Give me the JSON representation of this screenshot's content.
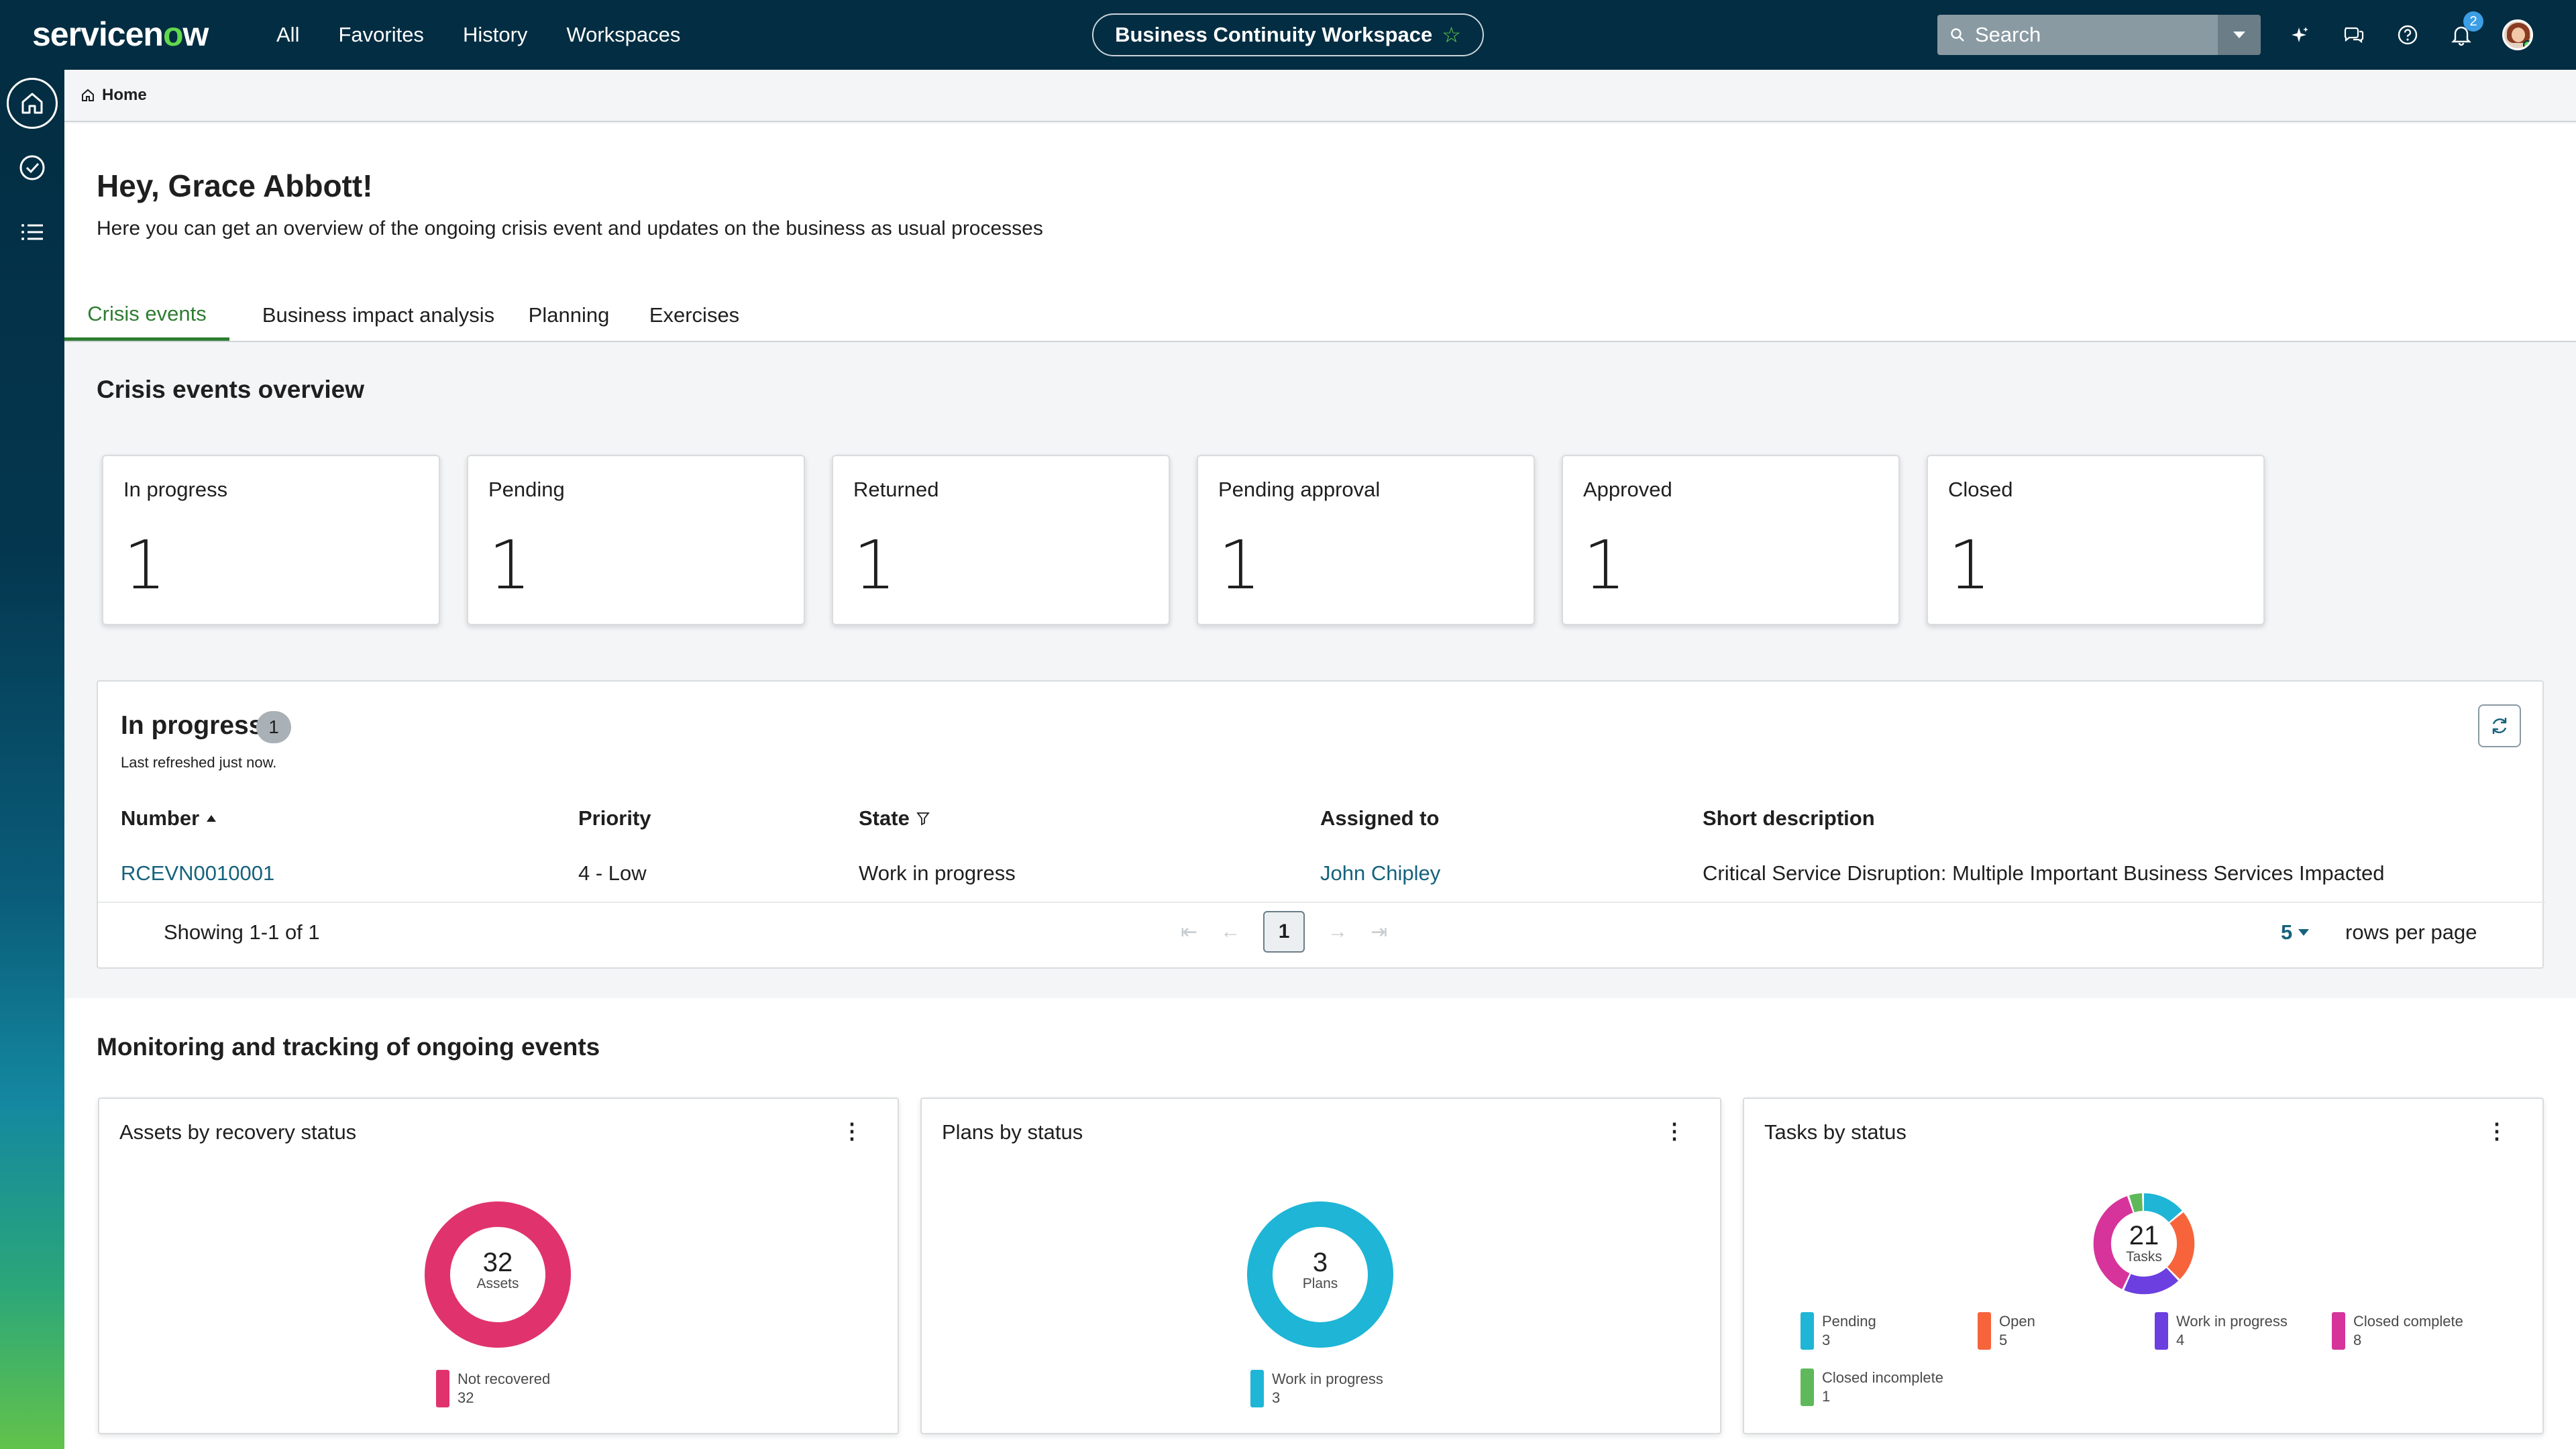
{
  "topbar": {
    "logo_left": "servicen",
    "logo_o": "o",
    "logo_right": "w",
    "nav": [
      "All",
      "Favorites",
      "History",
      "Workspaces"
    ],
    "workspace": "Business Continuity Workspace",
    "search_placeholder": "Search",
    "notification_count": "2"
  },
  "breadcrumb": {
    "home": "Home"
  },
  "header": {
    "greeting": "Hey, Grace Abbott!",
    "subtitle": "Here you can get an overview of the ongoing crisis event and updates on the business as usual processes",
    "tabs": [
      "Crisis events",
      "Business impact analysis",
      "Planning",
      "Exercises"
    ]
  },
  "overview": {
    "title": "Crisis events overview",
    "cards": [
      {
        "label": "In progress",
        "value": "1"
      },
      {
        "label": "Pending",
        "value": "1"
      },
      {
        "label": "Returned",
        "value": "1"
      },
      {
        "label": "Pending approval",
        "value": "1"
      },
      {
        "label": "Approved",
        "value": "1"
      },
      {
        "label": "Closed",
        "value": "1"
      }
    ]
  },
  "list": {
    "title": "In progress",
    "count": "1",
    "refreshed": "Last refreshed just now.",
    "columns": [
      "Number",
      "Priority",
      "State",
      "Assigned to",
      "Short description"
    ],
    "rows": [
      {
        "number": "RCEVN0010001",
        "priority": "4 - Low",
        "state": "Work in progress",
        "assigned_to": "John Chipley",
        "short_description": "Critical Service Disruption: Multiple Important Business Services Impacted"
      }
    ],
    "showing": "Showing 1-1 of 1",
    "current_page": "1",
    "rows_per_page_value": "5",
    "rows_per_page_label": "rows per page"
  },
  "monitoring": {
    "title": "Monitoring and tracking of ongoing events",
    "widgets": [
      {
        "title": "Assets by recovery status",
        "total": "32",
        "unit": "Assets",
        "segments": [
          {
            "label": "Not recovered",
            "value": 32,
            "color": "#e0336e"
          }
        ]
      },
      {
        "title": "Plans by status",
        "total": "3",
        "unit": "Plans",
        "segments": [
          {
            "label": "Work in progress",
            "value": 3,
            "color": "#1eb5d6"
          }
        ]
      },
      {
        "title": "Tasks by status",
        "total": "21",
        "unit": "Tasks",
        "segments": [
          {
            "label": "Pending",
            "value": 3,
            "color": "#1eb5d6"
          },
          {
            "label": "Open",
            "value": 5,
            "color": "#f7643c"
          },
          {
            "label": "Work in progress",
            "value": 4,
            "color": "#6b3fe0"
          },
          {
            "label": "Closed complete",
            "value": 8,
            "color": "#d6349b"
          },
          {
            "label": "Closed incomplete",
            "value": 1,
            "color": "#5fb85a"
          }
        ]
      }
    ]
  },
  "colors": {
    "brand_green": "#62d84e",
    "nav_bg": "#032d42",
    "tab_active": "#2e7d32",
    "link": "#16627d"
  }
}
